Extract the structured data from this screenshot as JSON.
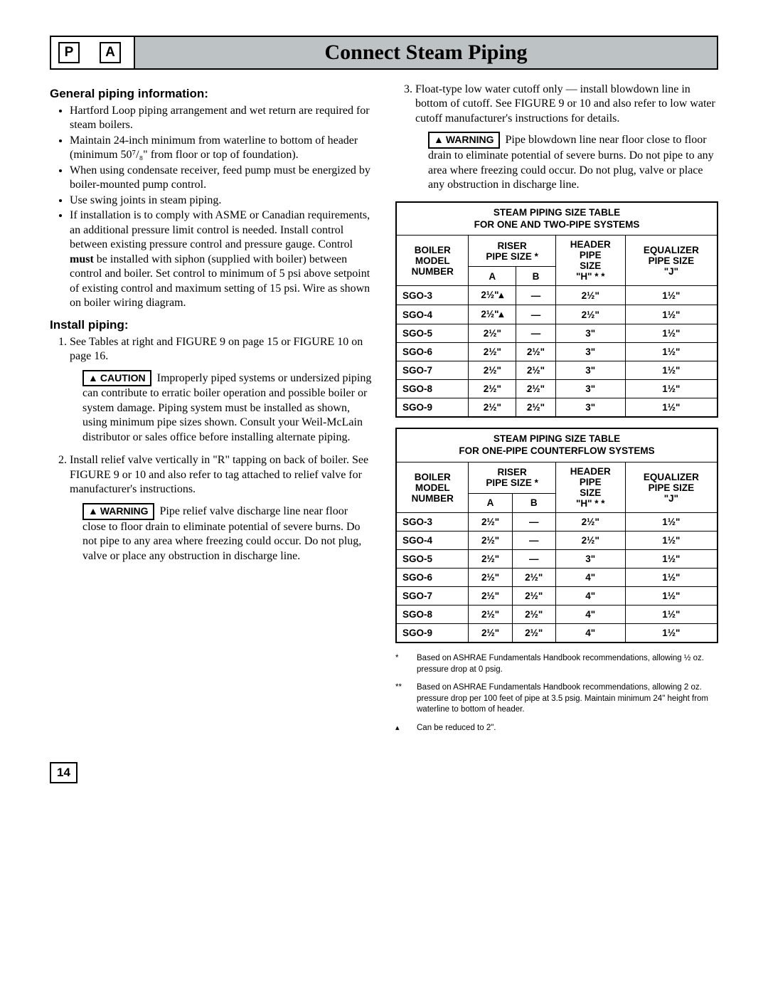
{
  "header": {
    "icon1": "P",
    "icon2": "A",
    "title": "Connect Steam Piping"
  },
  "left": {
    "h1": "General piping information:",
    "bullets": [
      "Hartford Loop piping arrangement and wet return are required for steam boilers.",
      "Maintain 24-inch minimum from waterline to bottom of header (minimum 50⁷/₈\" from floor or top of foundation).",
      "When using condensate receiver, feed pump must be energized by boiler-mounted pump control.",
      "Use swing joints in steam piping.",
      "If installation is to comply with ASME or Canadian requirements, an additional pressure limit control is needed. Install control between existing pressure control and pressure gauge. Control <b>must</b> be installed with siphon (supplied with boiler) between control and boiler. Set control to minimum of 5 psi above setpoint of existing control and maximum setting of 15 psi. Wire as shown on boiler wiring diagram."
    ],
    "h2": "Install piping:",
    "step1": "See Tables at right and FIGURE 9 on page 15 or FIGURE 10 on page 16.",
    "caution_label": "CAUTION",
    "caution_text": "Improperly piped systems or undersized piping can contribute to erratic boiler operation and possible boiler or system damage. Piping system must be installed as shown, using minimum pipe sizes shown. Consult your Weil-McLain distributor or sales office before installing alternate piping.",
    "step2": "Install relief valve vertically in \"R\" tapping on back of boiler. See FIGURE 9 or 10 and also refer to tag attached to relief valve for manufacturer's instructions.",
    "warning1_label": "WARNING",
    "warning1_text": "Pipe relief valve discharge line near floor close to floor drain to eliminate potential of severe burns. Do not pipe to any area where freezing could occur. Do not plug, valve or place any obstruction in discharge line."
  },
  "right": {
    "step3": "Float-type low water cutoff only — install blowdown line in bottom of cutoff. See FIGURE 9 or 10 and also refer to low water cutoff manufacturer's instructions for details.",
    "warning2_label": "WARNING",
    "warning2_text": "Pipe blowdown line near floor close to floor drain to eliminate potential of severe burns. Do not pipe to any area where freezing could occur. Do not plug, valve or place any obstruction in discharge line."
  },
  "table1": {
    "title1": "STEAM PIPING SIZE TABLE",
    "title2": "FOR ONE AND TWO-PIPE SYSTEMS",
    "hdr_model1": "BOILER",
    "hdr_model2": "MODEL",
    "hdr_model3": "NUMBER",
    "hdr_riser1": "RISER",
    "hdr_riser2": "PIPE SIZE *",
    "hdr_a": "A",
    "hdr_b": "B",
    "hdr_header1": "HEADER",
    "hdr_header2": "PIPE",
    "hdr_header3": "SIZE",
    "hdr_header4": "\"H\" * *",
    "hdr_eq1": "EQUALIZER",
    "hdr_eq2": "PIPE SIZE",
    "hdr_eq3": "\"J\"",
    "rows": [
      {
        "m": "SGO-3",
        "a": "2½\"▴",
        "b": "—",
        "h": "2½\"",
        "j": "1½\""
      },
      {
        "m": "SGO-4",
        "a": "2½\"▴",
        "b": "—",
        "h": "2½\"",
        "j": "1½\""
      },
      {
        "m": "SGO-5",
        "a": "2½\"",
        "b": "—",
        "h": "3\"",
        "j": "1½\""
      },
      {
        "m": "SGO-6",
        "a": "2½\"",
        "b": "2½\"",
        "h": "3\"",
        "j": "1½\""
      },
      {
        "m": "SGO-7",
        "a": "2½\"",
        "b": "2½\"",
        "h": "3\"",
        "j": "1½\""
      },
      {
        "m": "SGO-8",
        "a": "2½\"",
        "b": "2½\"",
        "h": "3\"",
        "j": "1½\""
      },
      {
        "m": "SGO-9",
        "a": "2½\"",
        "b": "2½\"",
        "h": "3\"",
        "j": "1½\""
      }
    ]
  },
  "table2": {
    "title1": "STEAM PIPING SIZE TABLE",
    "title2": "FOR ONE-PIPE COUNTERFLOW SYSTEMS",
    "rows": [
      {
        "m": "SGO-3",
        "a": "2½\"",
        "b": "—",
        "h": "2½\"",
        "j": "1½\""
      },
      {
        "m": "SGO-4",
        "a": "2½\"",
        "b": "—",
        "h": "2½\"",
        "j": "1½\""
      },
      {
        "m": "SGO-5",
        "a": "2½\"",
        "b": "—",
        "h": "3\"",
        "j": "1½\""
      },
      {
        "m": "SGO-6",
        "a": "2½\"",
        "b": "2½\"",
        "h": "4\"",
        "j": "1½\""
      },
      {
        "m": "SGO-7",
        "a": "2½\"",
        "b": "2½\"",
        "h": "4\"",
        "j": "1½\""
      },
      {
        "m": "SGO-8",
        "a": "2½\"",
        "b": "2½\"",
        "h": "4\"",
        "j": "1½\""
      },
      {
        "m": "SGO-9",
        "a": "2½\"",
        "b": "2½\"",
        "h": "4\"",
        "j": "1½\""
      }
    ]
  },
  "footnotes": {
    "f1_mark": "*",
    "f1": "Based on ASHRAE Fundamentals Handbook recommendations, allowing ½ oz. pressure drop at 0 psig.",
    "f2_mark": "**",
    "f2": "Based on ASHRAE Fundamentals Handbook recommendations, allowing 2 oz. pressure drop per 100 feet of pipe at 3.5 psig. Maintain minimum 24\" height from waterline to bottom of header.",
    "f3_mark": "▴",
    "f3": "Can be reduced to 2\"."
  },
  "page_number": "14"
}
